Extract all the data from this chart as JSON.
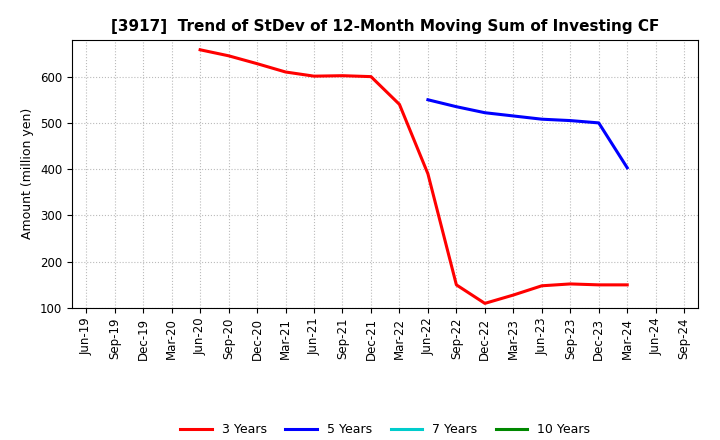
{
  "title": "[3917]  Trend of StDev of 12-Month Moving Sum of Investing CF",
  "ylabel": "Amount (million yen)",
  "background_color": "#ffffff",
  "grid_color": "#bbbbbb",
  "ylim": [
    100,
    680
  ],
  "yticks": [
    100,
    200,
    300,
    400,
    500,
    600
  ],
  "series": {
    "3 Years": {
      "color": "#ff0000",
      "data_x": [
        "Jun-20",
        "Sep-20",
        "Dec-20",
        "Mar-21",
        "Jun-21",
        "Sep-21",
        "Dec-21",
        "Mar-22",
        "Jun-22",
        "Sep-22",
        "Dec-22",
        "Mar-23",
        "Jun-23",
        "Sep-23",
        "Dec-23",
        "Mar-24"
      ],
      "data_y": [
        658,
        645,
        628,
        610,
        601,
        602,
        600,
        540,
        390,
        150,
        110,
        128,
        148,
        152,
        150,
        150
      ]
    },
    "5 Years": {
      "color": "#0000ff",
      "data_x": [
        "Jun-22",
        "Sep-22",
        "Dec-22",
        "Mar-23",
        "Jun-23",
        "Sep-23",
        "Dec-23",
        "Mar-24"
      ],
      "data_y": [
        550,
        535,
        522,
        515,
        508,
        505,
        500,
        403
      ]
    },
    "7 Years": {
      "color": "#00cccc",
      "data_x": [],
      "data_y": []
    },
    "10 Years": {
      "color": "#008800",
      "data_x": [],
      "data_y": []
    }
  },
  "x_tick_labels": [
    "Jun-19",
    "Sep-19",
    "Dec-19",
    "Mar-20",
    "Jun-20",
    "Sep-20",
    "Dec-20",
    "Mar-21",
    "Jun-21",
    "Sep-21",
    "Dec-21",
    "Mar-22",
    "Jun-22",
    "Sep-22",
    "Dec-22",
    "Mar-23",
    "Jun-23",
    "Sep-23",
    "Dec-23",
    "Mar-24",
    "Jun-24",
    "Sep-24"
  ],
  "legend_labels": [
    "3 Years",
    "5 Years",
    "7 Years",
    "10 Years"
  ],
  "legend_colors": [
    "#ff0000",
    "#0000ff",
    "#00cccc",
    "#008800"
  ],
  "title_fontsize": 11,
  "axis_fontsize": 8.5,
  "ylabel_fontsize": 9,
  "legend_fontsize": 9,
  "linewidth": 2.2
}
